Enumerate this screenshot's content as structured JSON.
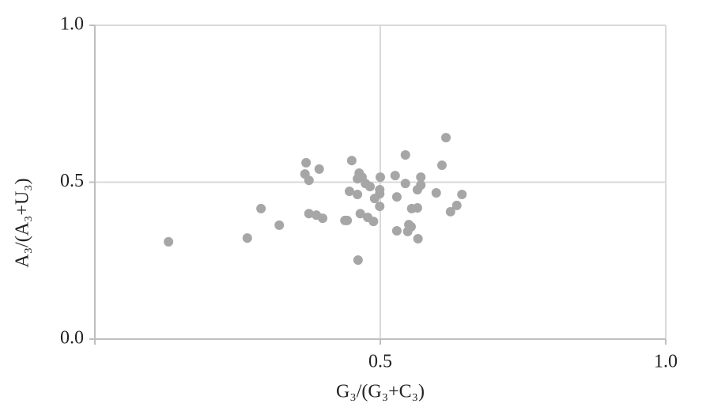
{
  "chart_data": {
    "type": "scatter",
    "x_label": "G₃/(G₃+C₃)",
    "y_label": "A₃/(A₃+U₃)",
    "color": "#a6a6a6",
    "xlim": [
      0,
      1
    ],
    "ylim": [
      0,
      1
    ],
    "xticks": [
      0.5,
      {
        "value": 1,
        "label": "1.0"
      }
    ],
    "yticks": [
      {
        "value": 0,
        "label": "0.0"
      },
      0.5,
      {
        "value": 1,
        "label": "1.0"
      }
    ],
    "grid": true,
    "x": [
      0.129,
      0.267,
      0.291,
      0.323,
      0.37,
      0.368,
      0.375,
      0.393,
      0.375,
      0.388,
      0.399,
      0.438,
      0.442,
      0.45,
      0.446,
      0.46,
      0.46,
      0.463,
      0.468,
      0.465,
      0.461,
      0.474,
      0.482,
      0.478,
      0.488,
      0.49,
      0.499,
      0.499,
      0.5,
      0.499,
      0.526,
      0.529,
      0.529,
      0.544,
      0.544,
      0.55,
      0.548,
      0.555,
      0.554,
      0.565,
      0.565,
      0.571,
      0.571,
      0.566,
      0.598,
      0.608,
      0.615,
      0.623,
      0.634,
      0.643
    ],
    "y": [
      0.31,
      0.322,
      0.416,
      0.363,
      0.562,
      0.526,
      0.506,
      0.542,
      0.4,
      0.395,
      0.385,
      0.378,
      0.378,
      0.569,
      0.471,
      0.461,
      0.511,
      0.529,
      0.516,
      0.4,
      0.252,
      0.496,
      0.486,
      0.388,
      0.375,
      0.448,
      0.463,
      0.476,
      0.516,
      0.423,
      0.521,
      0.453,
      0.345,
      0.587,
      0.496,
      0.365,
      0.343,
      0.416,
      0.358,
      0.418,
      0.476,
      0.516,
      0.491,
      0.32,
      0.466,
      0.554,
      0.642,
      0.406,
      0.426,
      0.461
    ]
  }
}
